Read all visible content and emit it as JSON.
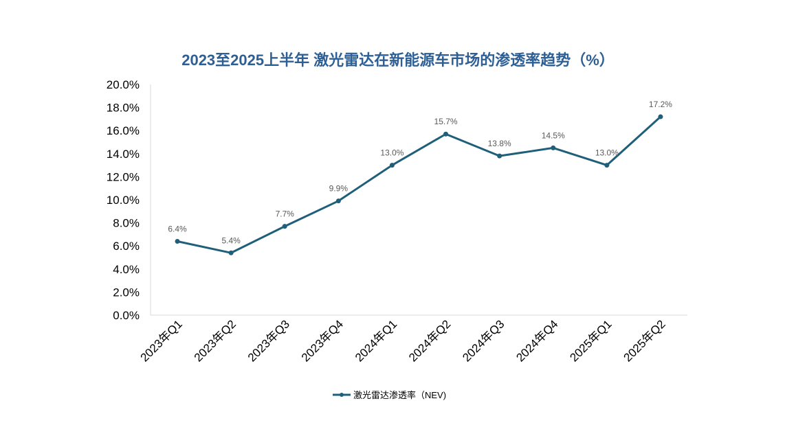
{
  "chart_data": {
    "type": "line",
    "title": "2023至2025上半年 激光雷达在新能源车市场的渗透率趋势（%）",
    "categories": [
      "2023年Q1",
      "2023年Q2",
      "2023年Q3",
      "2023年Q4",
      "2024年Q1",
      "2024年Q2",
      "2024年Q3",
      "2024年Q4",
      "2025年Q1",
      "2025年Q2"
    ],
    "series": [
      {
        "name": "激光雷达渗透率（NEV)",
        "values": [
          6.4,
          5.4,
          7.7,
          9.9,
          13.0,
          15.7,
          13.8,
          14.5,
          13.0,
          17.2
        ],
        "color": "#1f5f7a"
      }
    ],
    "data_labels": [
      "6.4%",
      "5.4%",
      "7.7%",
      "9.9%",
      "13.0%",
      "15.7%",
      "13.8%",
      "14.5%",
      "13.0%",
      "17.2%"
    ],
    "yticks": [
      "0.0%",
      "2.0%",
      "4.0%",
      "6.0%",
      "8.0%",
      "10.0%",
      "12.0%",
      "14.0%",
      "16.0%",
      "18.0%",
      "20.0%"
    ],
    "ylim": [
      0,
      20
    ],
    "grid": false,
    "legend": "bottom",
    "title_color": "#2e5f94"
  }
}
